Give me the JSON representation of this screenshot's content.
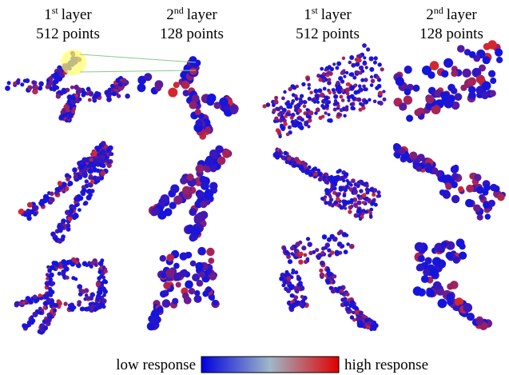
{
  "columns": [
    {
      "number": "1",
      "suffix": "st",
      "label": "layer",
      "points": "512 points"
    },
    {
      "number": "2",
      "suffix": "nd",
      "label": "layer",
      "points": "128 points"
    },
    {
      "number": "1",
      "suffix": "st",
      "label": "layer",
      "points": "512 points"
    },
    {
      "number": "2",
      "suffix": "nd",
      "label": "layer",
      "points": "128 points"
    }
  ],
  "legend": {
    "low": "low response",
    "high": "high response"
  }
}
